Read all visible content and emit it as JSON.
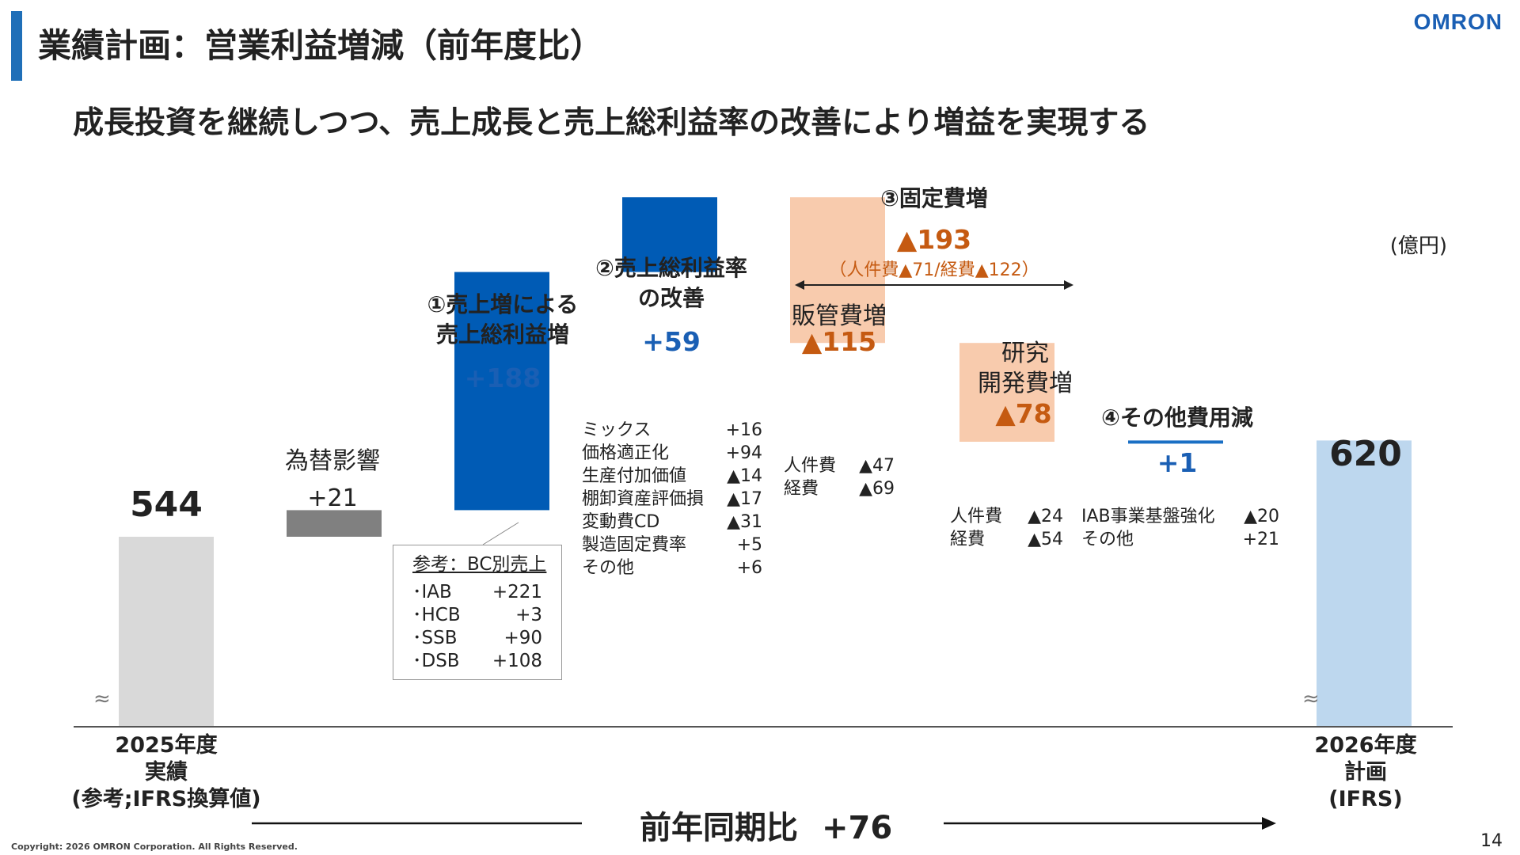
{
  "header": {
    "title": "業績計画：営業利益増減（前年度比）",
    "logo_text": "OMRON",
    "subtitle": "成長投資を継続しつつ、売上成長と売上総利益率の改善により増益を実現する",
    "unit": "(億円)"
  },
  "labels": {
    "fx": "為替影響",
    "gp_sales_line1": "①売上増による",
    "gp_sales_line2": "売上総利益増",
    "gp_rate_line1": "②売上総利益率",
    "gp_rate_line2": "の改善",
    "fixed_title": "③固定費増",
    "fixed_total": "▲193",
    "fixed_breakdown": "（人件費▲71/経費▲122）",
    "sga": "販管費増",
    "rd_line1": "研究",
    "rd_line2": "開発費増",
    "other": "④その他費用減",
    "start_line1": "2025年度",
    "start_line2": "実績",
    "start_line3": "(参考;IFRS換算値)",
    "end_line1": "2026年度",
    "end_line2": "計画",
    "end_line3": "(IFRS)",
    "yoy_label": "前年同期比",
    "yoy_value": "+76"
  },
  "value_labels": {
    "start": "544",
    "fx": "+21",
    "gp_sales": "+188",
    "gp_rate": "+59",
    "sga": "▲115",
    "rd": "▲78",
    "other": "+1",
    "end": "620"
  },
  "details": {
    "gp_rate": [
      {
        "label": "ミックス",
        "value": "+16"
      },
      {
        "label": "価格適正化",
        "value": "+94"
      },
      {
        "label": "生産付加価値",
        "value": "▲14"
      },
      {
        "label": "棚卸資産評価損",
        "value": "▲17"
      },
      {
        "label": "変動費CD",
        "value": "▲31"
      },
      {
        "label": "製造固定費率",
        "value": "+5"
      },
      {
        "label": "その他",
        "value": "+6"
      }
    ],
    "sga": [
      {
        "label": "人件費",
        "value": "▲47"
      },
      {
        "label": "経費",
        "value": "▲69"
      }
    ],
    "rd": [
      {
        "label": "人件費",
        "value": "▲24"
      },
      {
        "label": "経費",
        "value": "▲54"
      }
    ],
    "other": [
      {
        "label": "IAB事業基盤強化",
        "value": "▲20"
      },
      {
        "label": "その他",
        "value": "+21"
      }
    ],
    "reference": {
      "title": "参考：BC別売上",
      "rows": [
        {
          "label": "･IAB",
          "value": "+221"
        },
        {
          "label": "･HCB",
          "value": "+3"
        },
        {
          "label": "･SSB",
          "value": "+90"
        },
        {
          "label": "･DSB",
          "value": "+108"
        }
      ]
    }
  },
  "chart_data": {
    "type": "bar",
    "subtype": "waterfall",
    "categories": [
      "2025年度実績",
      "為替影響",
      "売上総利益増",
      "売上総利益率の改善",
      "販管費増",
      "研究開発費増",
      "その他費用減",
      "2026年度計画"
    ],
    "values": [
      544,
      21,
      188,
      59,
      -115,
      -78,
      1,
      620
    ],
    "kinds": [
      "total",
      "delta",
      "delta",
      "delta",
      "delta",
      "delta",
      "delta",
      "total"
    ],
    "colors": {
      "start": "#d9d9d9",
      "fx": "#808080",
      "increase": "#005bb5",
      "decrease": "#f8cbad",
      "other": "#1a6fc4",
      "end": "#bdd7ee"
    },
    "axis_break": true
  },
  "footer": {
    "copyright": "Copyright: 2026 OMRON Corporation. All Rights Reserved.",
    "page": "14"
  }
}
